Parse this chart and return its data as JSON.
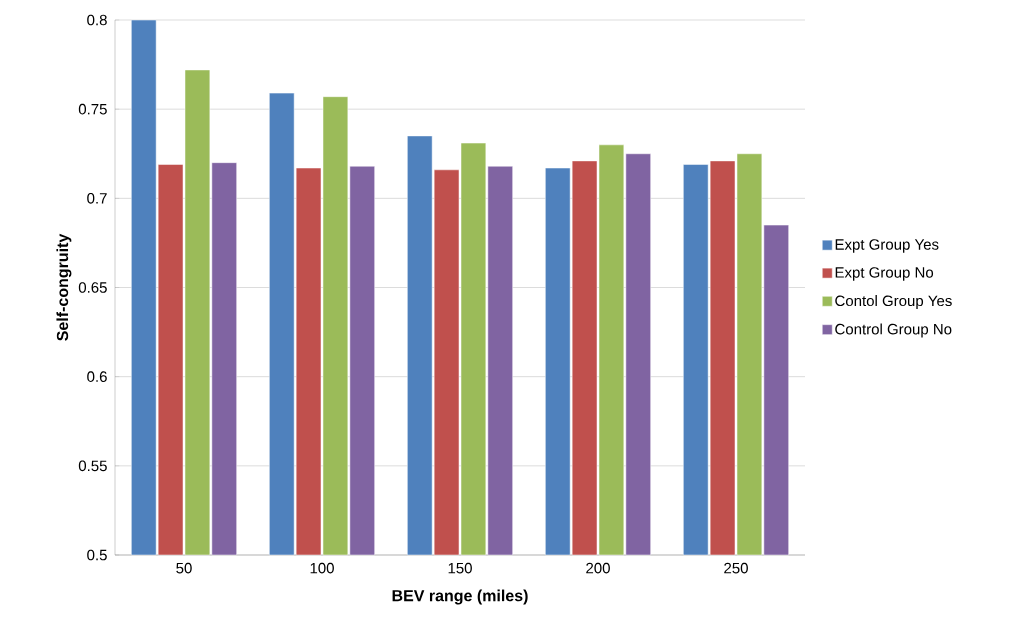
{
  "chart_data": {
    "type": "bar",
    "xlabel": "BEV range (miles)",
    "ylabel": "Self-congruity",
    "categories": [
      "50",
      "100",
      "150",
      "200",
      "250"
    ],
    "series": [
      {
        "name": "Expt Group Yes",
        "color": "#4f81bd",
        "values": [
          0.8,
          0.759,
          0.735,
          0.717,
          0.719
        ]
      },
      {
        "name": "Expt Group No",
        "color": "#c0504d",
        "values": [
          0.719,
          0.717,
          0.716,
          0.721,
          0.721
        ]
      },
      {
        "name": "Contol Group Yes",
        "color": "#9bbb59",
        "values": [
          0.772,
          0.757,
          0.731,
          0.73,
          0.725
        ]
      },
      {
        "name": "Control Group No",
        "color": "#8064a2",
        "values": [
          0.72,
          0.718,
          0.718,
          0.725,
          0.685
        ]
      }
    ],
    "ylim": [
      0.5,
      0.8
    ],
    "yticks": [
      0.5,
      0.55,
      0.6,
      0.65,
      0.7,
      0.75,
      0.8
    ],
    "grid": "y",
    "legend": "right"
  }
}
